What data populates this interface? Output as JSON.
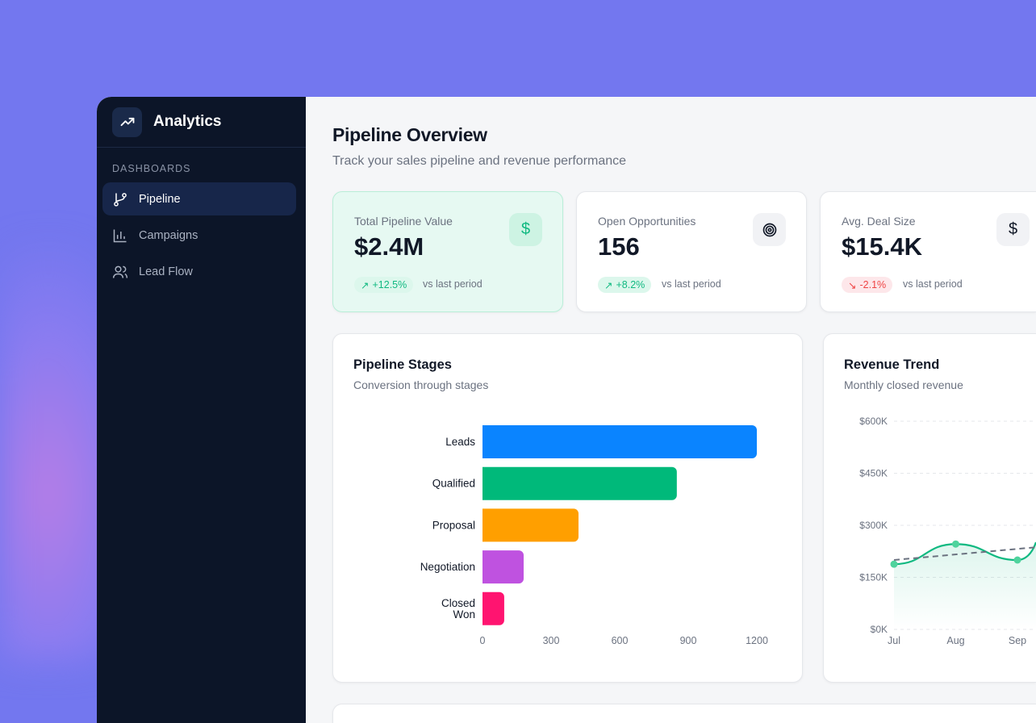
{
  "sidebar": {
    "brand": "Analytics",
    "section": "DASHBOARDS",
    "items": [
      {
        "label": "Pipeline",
        "icon": "git-branch-icon",
        "active": true
      },
      {
        "label": "Campaigns",
        "icon": "bar-chart-icon"
      },
      {
        "label": "Lead Flow",
        "icon": "users-icon"
      }
    ]
  },
  "header": {
    "title": "Pipeline Overview",
    "subtitle": "Track your sales pipeline and revenue performance"
  },
  "kpis": [
    {
      "label": "Total Pipeline Value",
      "value": "$2.4M",
      "change": "+12.5%",
      "trend": "up",
      "note": "vs last period",
      "icon": "dollar-icon"
    },
    {
      "label": "Open Opportunities",
      "value": "156",
      "change": "+8.2%",
      "trend": "up",
      "note": "vs last period",
      "icon": "target-icon"
    },
    {
      "label": "Avg. Deal Size",
      "value": "$15.4K",
      "change": "-2.1%",
      "trend": "down",
      "note": "vs last period",
      "icon": "dollar-icon"
    }
  ],
  "colors": {
    "accent": "#10b981",
    "negative": "#ef4444",
    "sidebar": "#0c1528",
    "background": "#7377ef"
  },
  "pipeline": {
    "title": "Pipeline Stages",
    "subtitle": "Conversion through stages"
  },
  "revenue": {
    "title": "Revenue Trend",
    "subtitle": "Monthly closed revenue"
  },
  "chart_data": [
    {
      "type": "bar",
      "orientation": "horizontal",
      "categories": [
        "Leads",
        "Qualified",
        "Proposal",
        "Negotiation",
        "Closed Won"
      ],
      "values": [
        1200,
        850,
        420,
        180,
        95
      ],
      "colors": [
        "#0a84ff",
        "#00b97a",
        "#ff9f00",
        "#bf52e0",
        "#ff1470"
      ],
      "xlim": [
        0,
        1200
      ],
      "xticks": [
        0,
        300,
        600,
        900,
        1200
      ]
    },
    {
      "type": "area",
      "x": [
        "Jul",
        "Aug",
        "Sep"
      ],
      "values": [
        188000,
        246000,
        200000
      ],
      "trend": [
        200000,
        225000,
        248000
      ],
      "ylim": [
        0,
        600000
      ],
      "yticks": [
        "$0K",
        "$150K",
        "$300K",
        "$450K",
        "$600K"
      ],
      "color": "#10b981",
      "grid": true
    }
  ]
}
